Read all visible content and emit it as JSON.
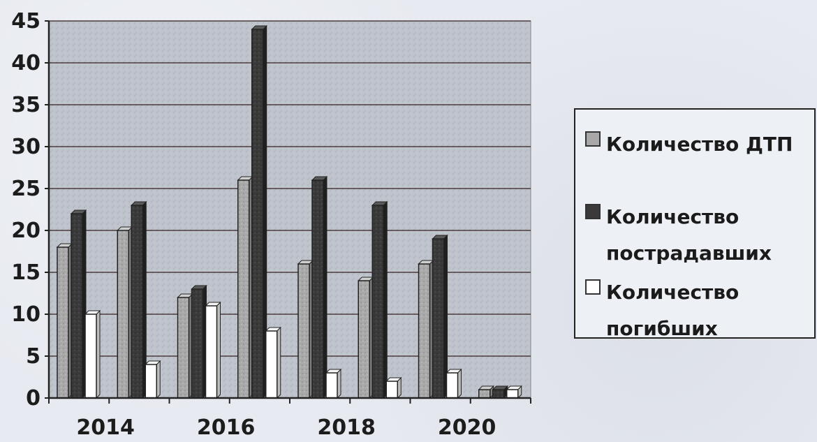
{
  "chart_data": {
    "type": "bar",
    "categories": [
      "2014",
      "2015",
      "2016",
      "2017",
      "2018",
      "2019",
      "2020",
      "2021"
    ],
    "x_tick_labels": [
      "2014",
      "2016",
      "2018",
      "2020"
    ],
    "series": [
      {
        "name": "Количество ДТП",
        "values": [
          18,
          20,
          12,
          26,
          16,
          14,
          16,
          1
        ],
        "color": "#a8a8a8"
      },
      {
        "name": "Количество\nпострадавших",
        "values": [
          22,
          23,
          13,
          44,
          26,
          23,
          19,
          1
        ],
        "color": "#3a3a3a"
      },
      {
        "name": "Количество\nпогибших",
        "values": [
          10,
          4,
          11,
          8,
          3,
          2,
          3,
          1
        ],
        "color": "#ffffff"
      }
    ],
    "y_ticks": [
      0,
      5,
      10,
      15,
      20,
      25,
      30,
      35,
      40,
      45
    ],
    "ylim": [
      0,
      45
    ],
    "grid": true,
    "legend_position": "right",
    "title": "",
    "xlabel": "",
    "ylabel": ""
  },
  "legend": {
    "items": [
      {
        "label": "Количество ДТП",
        "color": "#a8a8a8"
      },
      {
        "label": "Количество\nпострадавших",
        "color": "#3a3a3a"
      },
      {
        "label": "Количество\nпогибших",
        "color": "#ffffff"
      }
    ]
  }
}
